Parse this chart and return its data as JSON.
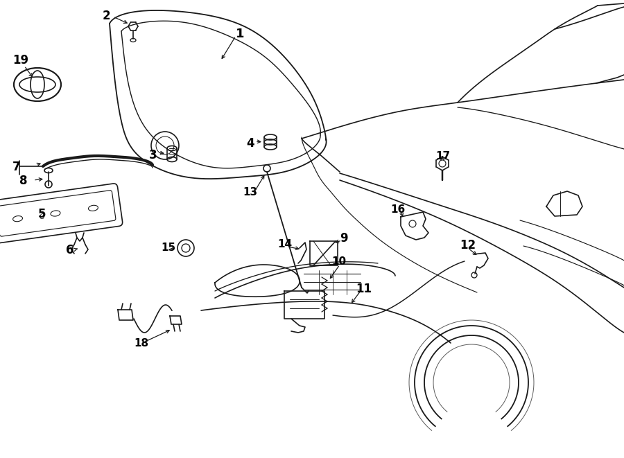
{
  "bg_color": "#ffffff",
  "line_color": "#1a1a1a",
  "text_color": "#000000",
  "lw": 1.2
}
